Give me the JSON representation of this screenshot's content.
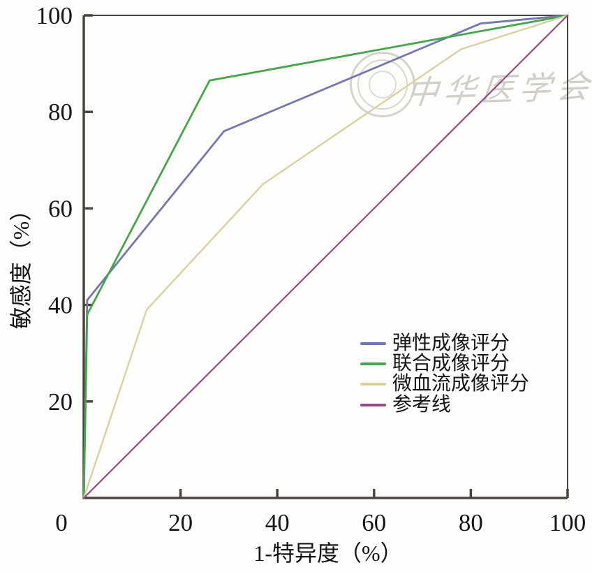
{
  "chart_data": {
    "type": "line",
    "title": "",
    "xlabel": "1-特异度（%）",
    "ylabel": "敏感度（%）",
    "xlim": [
      0,
      100
    ],
    "ylim": [
      0,
      100
    ],
    "x_ticks": [
      0,
      20,
      40,
      60,
      80,
      100
    ],
    "y_ticks": [
      20,
      40,
      60,
      80,
      100
    ],
    "grid": false,
    "legend_position": "inside-lower-right",
    "axis_color": "#4c4440",
    "tick_label_color": "#161616",
    "series": [
      {
        "name": "弹性成像评分",
        "color": "#7478b2",
        "width": 2.8,
        "points": [
          [
            0,
            0
          ],
          [
            0.7,
            41
          ],
          [
            29,
            76
          ],
          [
            82,
            98.3
          ],
          [
            100,
            100
          ]
        ]
      },
      {
        "name": "联合成像评分",
        "color": "#43a64b",
        "width": 2.8,
        "points": [
          [
            0,
            0
          ],
          [
            0.7,
            38
          ],
          [
            26,
            86.5
          ],
          [
            100,
            100
          ]
        ]
      },
      {
        "name": "微血流成像评分",
        "color": "#dccfa0",
        "width": 2.4,
        "points": [
          [
            0,
            0
          ],
          [
            13,
            39
          ],
          [
            37,
            65
          ],
          [
            78,
            93
          ],
          [
            100,
            100
          ]
        ]
      },
      {
        "name": "参考线",
        "color": "#964a82",
        "width": 2.2,
        "points": [
          [
            0,
            0
          ],
          [
            100,
            100
          ]
        ]
      }
    ]
  },
  "watermark": {
    "text": "中华医学会"
  }
}
